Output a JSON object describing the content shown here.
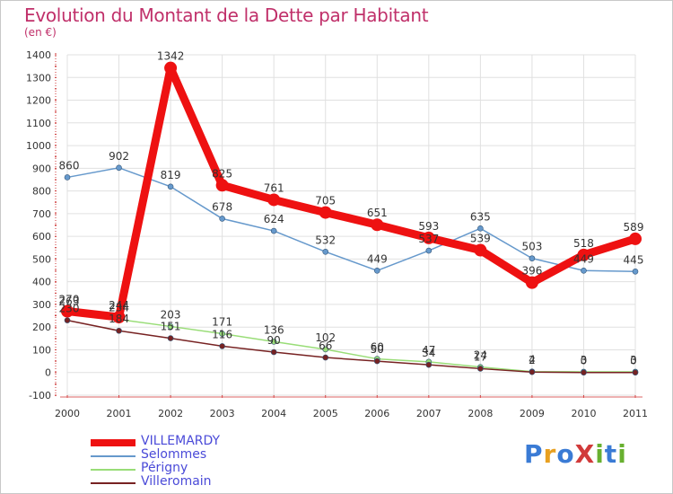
{
  "title": "Evolution du Montant de la Dette par Habitant",
  "unit_label": "(en €)",
  "logo_text": "ProXiti",
  "colors": {
    "title": "#c0306a",
    "grid": "#e0e0e0",
    "axis_text": "#333333",
    "legend_text": "#4a4ad8"
  },
  "chart_data": {
    "type": "line",
    "x": [
      "2000",
      "2001",
      "2002",
      "2003",
      "2004",
      "2005",
      "2006",
      "2007",
      "2008",
      "2009",
      "2010",
      "2011"
    ],
    "ylim": [
      -100,
      1400
    ],
    "yticks": [
      -100,
      0,
      100,
      200,
      300,
      400,
      500,
      600,
      700,
      800,
      900,
      1000,
      1100,
      1200,
      1300,
      1400
    ],
    "grid": true,
    "legend_position": "bottom-left",
    "series": [
      {
        "name": "VILLEMARDY",
        "color": "#ee1111",
        "width": 9,
        "values": [
          270,
          244,
          1342,
          825,
          761,
          705,
          651,
          593,
          539,
          396,
          518,
          589
        ]
      },
      {
        "name": "Selommes",
        "color": "#6699cc",
        "width": 1.5,
        "values": [
          860,
          902,
          819,
          678,
          624,
          532,
          449,
          537,
          635,
          503,
          449,
          445
        ]
      },
      {
        "name": "Périgny",
        "color": "#99dd77",
        "width": 1.5,
        "values": [
          263,
          234,
          203,
          171,
          136,
          102,
          60,
          47,
          24,
          4,
          3,
          3
        ]
      },
      {
        "name": "Villeromain",
        "color": "#772222",
        "width": 1.5,
        "values": [
          230,
          184,
          151,
          116,
          90,
          66,
          50,
          34,
          17,
          2,
          0,
          0
        ]
      }
    ]
  }
}
